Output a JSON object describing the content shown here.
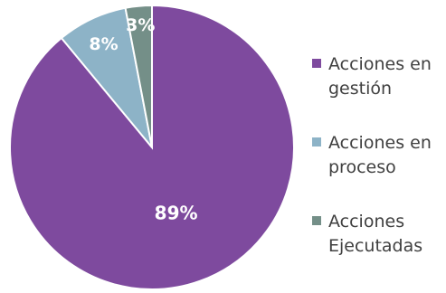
{
  "chart_data": {
    "type": "pie",
    "title": "",
    "start": "12-o-clock",
    "direction": "clockwise",
    "legend_position": "right",
    "slices": [
      {
        "name_lines": [
          "Acciones en",
          "gestión"
        ],
        "value": 89,
        "label": "89%",
        "color": "#7E4A9E"
      },
      {
        "name_lines": [
          "Acciones en",
          "proceso"
        ],
        "value": 8,
        "label": "8%",
        "color": "#8DB3C7"
      },
      {
        "name_lines": [
          "Acciones",
          "Ejecutadas"
        ],
        "value": 3,
        "label": "3%",
        "color": "#748F88"
      }
    ]
  }
}
